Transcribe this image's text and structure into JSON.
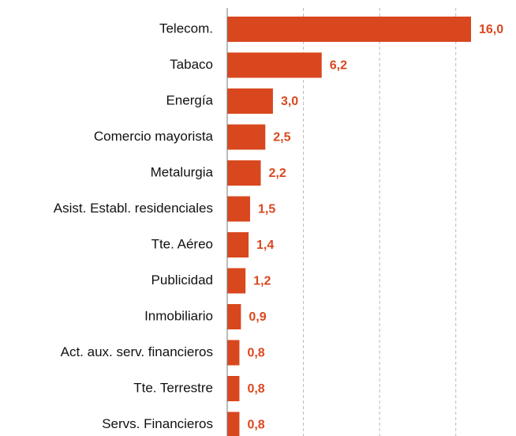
{
  "chart_data": {
    "type": "bar",
    "orientation": "horizontal",
    "categories": [
      "Telecom.",
      "Tabaco",
      "Energía",
      "Comercio mayorista",
      "Metalurgia",
      "Asist. Establ. residenciales",
      "Tte. Aéreo",
      "Publicidad",
      "Inmobiliario",
      "Act. aux. serv. financieros",
      "Tte. Terrestre",
      "Servs. Financieros"
    ],
    "values": [
      16.0,
      6.2,
      3.0,
      2.5,
      2.2,
      1.5,
      1.4,
      1.2,
      0.9,
      0.8,
      0.8,
      0.8
    ],
    "value_labels": [
      "16,0",
      "6,2",
      "3,0",
      "2,5",
      "2,2",
      "1,5",
      "1,4",
      "1,2",
      "0,9",
      "0,8",
      "0,8",
      "0,8"
    ],
    "color": "#d9471e",
    "xlim": [
      0,
      16
    ],
    "xticks": [
      5,
      10,
      15
    ],
    "grid": true
  }
}
